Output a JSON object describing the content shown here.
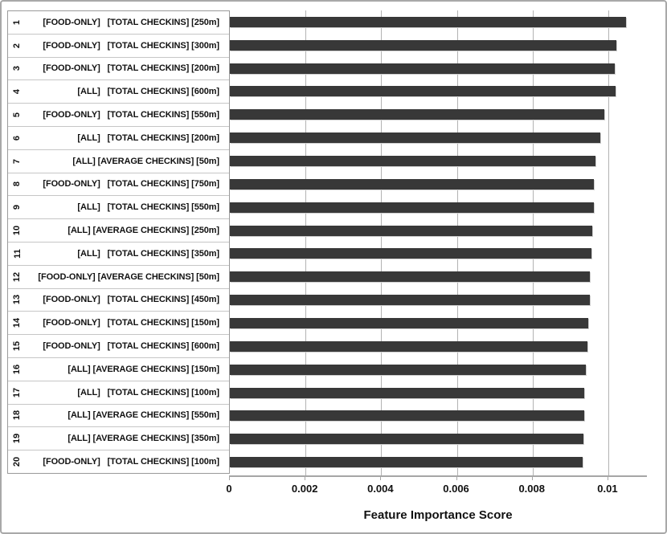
{
  "chart_data": {
    "type": "bar",
    "orientation": "horizontal",
    "title": "",
    "xlabel": "Feature Importance Score",
    "ylabel": "",
    "grid": true,
    "xlim": [
      0,
      0.011
    ],
    "x_tick_labels": [
      "0",
      "0.002",
      "0.004",
      "0.006",
      "0.008",
      "0.01"
    ],
    "x_tick_values": [
      0,
      0.002,
      0.004,
      0.006,
      0.008,
      0.01
    ],
    "ranks": [
      "1",
      "2",
      "3",
      "4",
      "5",
      "6",
      "7",
      "8",
      "9",
      "10",
      "11",
      "12",
      "13",
      "14",
      "15",
      "16",
      "17",
      "18",
      "19",
      "20"
    ],
    "categories": [
      "[FOOD-ONLY]   [TOTAL CHECKINS] [250m]",
      "[FOOD-ONLY]   [TOTAL CHECKINS] [300m]",
      "[FOOD-ONLY]   [TOTAL CHECKINS] [200m]",
      "[ALL]   [TOTAL CHECKINS] [600m]",
      "[FOOD-ONLY]   [TOTAL CHECKINS] [550m]",
      "[ALL]   [TOTAL CHECKINS] [200m]",
      "[ALL] [AVERAGE CHECKINS] [50m]",
      "[FOOD-ONLY]   [TOTAL CHECKINS] [750m]",
      "[ALL]   [TOTAL CHECKINS] [550m]",
      "[ALL] [AVERAGE CHECKINS] [250m]",
      "[ALL]   [TOTAL CHECKINS] [350m]",
      "[FOOD-ONLY] [AVERAGE CHECKINS] [50m]",
      "[FOOD-ONLY]   [TOTAL CHECKINS] [450m]",
      "[FOOD-ONLY]   [TOTAL CHECKINS] [150m]",
      "[FOOD-ONLY]   [TOTAL CHECKINS] [600m]",
      "[ALL] [AVERAGE CHECKINS] [150m]",
      "[ALL]   [TOTAL CHECKINS] [100m]",
      "[ALL] [AVERAGE CHECKINS] [550m]",
      "[ALL] [AVERAGE CHECKINS] [350m]",
      "[FOOD-ONLY]   [TOTAL CHECKINS] [100m]"
    ],
    "values": [
      0.01046,
      0.01021,
      0.01018,
      0.01019,
      0.00989,
      0.00979,
      0.00967,
      0.00963,
      0.00961,
      0.00958,
      0.00955,
      0.00952,
      0.00952,
      0.00948,
      0.00945,
      0.0094,
      0.00937,
      0.00936,
      0.00935,
      0.00933
    ],
    "bar_color": "#383838",
    "gridline_color": "#b3b3b3",
    "legend": null
  }
}
